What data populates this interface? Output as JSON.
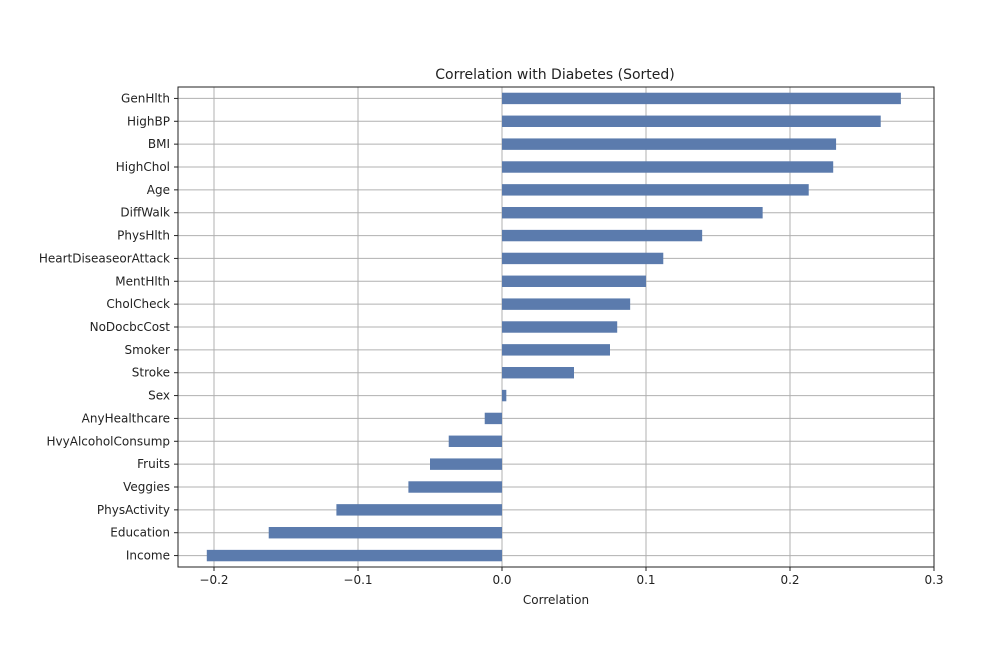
{
  "chart_data": {
    "type": "bar",
    "orientation": "horizontal",
    "title": "Correlation with Diabetes (Sorted)",
    "xlabel": "Correlation",
    "ylabel": "",
    "xlim": [
      -0.225,
      0.3
    ],
    "xticks": [
      -0.2,
      -0.1,
      0.0,
      0.1,
      0.2,
      0.3
    ],
    "xtick_labels": [
      "−0.2",
      "−0.1",
      "0.0",
      "0.1",
      "0.2",
      "0.3"
    ],
    "grid": true,
    "bar_color": "#5b7bad",
    "categories": [
      "GenHlth",
      "HighBP",
      "BMI",
      "HighChol",
      "Age",
      "DiffWalk",
      "PhysHlth",
      "HeartDiseaseorAttack",
      "MentHlth",
      "CholCheck",
      "NoDocbcCost",
      "Smoker",
      "Stroke",
      "Sex",
      "AnyHealthcare",
      "HvyAlcoholConsump",
      "Fruits",
      "Veggies",
      "PhysActivity",
      "Education",
      "Income"
    ],
    "values": [
      0.277,
      0.263,
      0.232,
      0.23,
      0.213,
      0.181,
      0.139,
      0.112,
      0.1,
      0.089,
      0.08,
      0.075,
      0.05,
      0.003,
      -0.012,
      -0.037,
      -0.05,
      -0.065,
      -0.115,
      -0.162,
      -0.205
    ]
  }
}
